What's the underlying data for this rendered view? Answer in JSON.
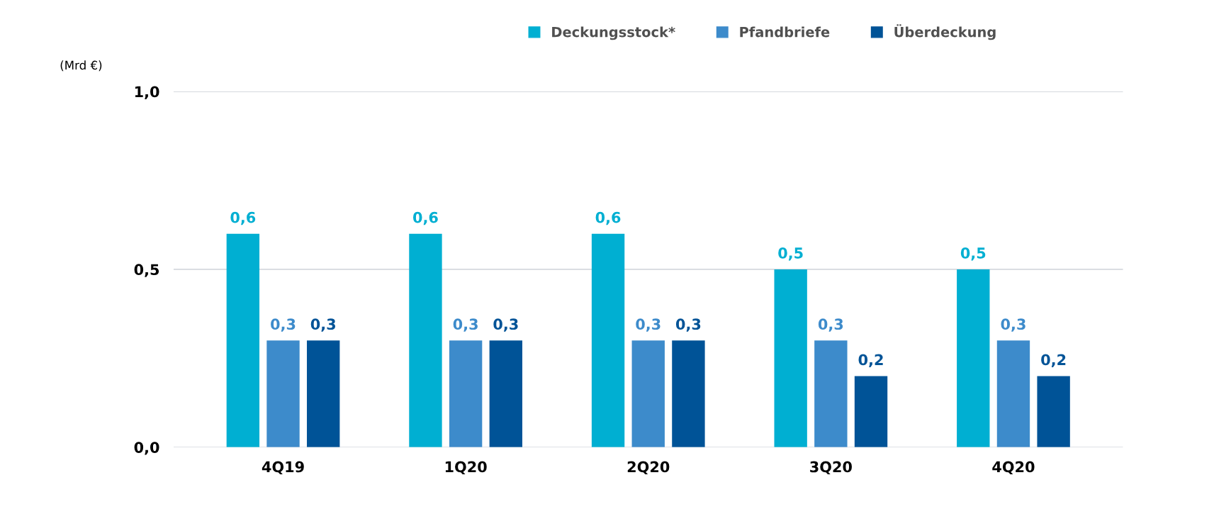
{
  "chart_data": {
    "type": "bar",
    "ylabel": "(Mrd €)",
    "categories": [
      "4Q19",
      "1Q20",
      "2Q20",
      "3Q20",
      "4Q20"
    ],
    "series": [
      {
        "name": "Deckungsstock*",
        "color": "#00afd2",
        "values": [
          0.6,
          0.6,
          0.6,
          0.5,
          0.5
        ],
        "value_labels": [
          "0,6",
          "0,6",
          "0,6",
          "0,5",
          "0,5"
        ]
      },
      {
        "name": "Pfandbriefe",
        "color": "#3d8bcb",
        "values": [
          0.3,
          0.3,
          0.3,
          0.3,
          0.3
        ],
        "value_labels": [
          "0,3",
          "0,3",
          "0,3",
          "0,3",
          "0,3"
        ]
      },
      {
        "name": "Überdeckung",
        "color": "#005397",
        "values": [
          0.3,
          0.3,
          0.3,
          0.2,
          0.2
        ],
        "value_labels": [
          "0,3",
          "0,3",
          "0,3",
          "0,2",
          "0,2"
        ]
      }
    ],
    "ylim": [
      0,
      1
    ],
    "yticks": [
      {
        "value": 0,
        "label": "0,0"
      },
      {
        "value": 0.5,
        "label": "0,5"
      },
      {
        "value": 1,
        "label": "1,0"
      }
    ],
    "grid": "y",
    "legend": "top right"
  }
}
